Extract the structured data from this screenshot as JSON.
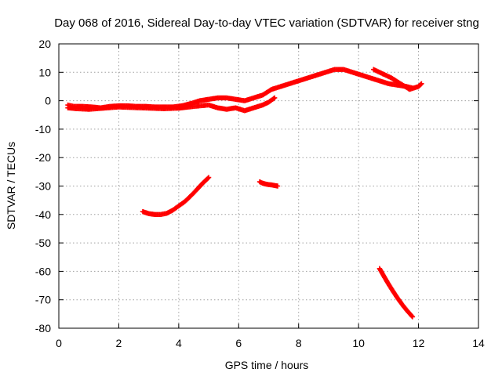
{
  "chart_data": {
    "type": "scatter",
    "title": "Day 068 of 2016, Sidereal Day-to-day VTEC variation (SDTVAR) for receiver stng",
    "xlabel": "GPS time / hours",
    "ylabel": "SDTVAR / TECUs",
    "xlim": [
      0,
      14
    ],
    "ylim": [
      -80,
      20
    ],
    "xticks": [
      0,
      2,
      4,
      6,
      8,
      10,
      12,
      14
    ],
    "yticks": [
      20,
      10,
      0,
      -10,
      -20,
      -30,
      -40,
      -50,
      -60,
      -70,
      -80
    ],
    "grid": true,
    "marker": "cross",
    "series": [
      {
        "name": "main-band",
        "color": "#ff0000",
        "x": [
          0.3,
          0.5,
          0.8,
          1.1,
          1.4,
          1.7,
          2.0,
          2.3,
          2.6,
          2.9,
          3.2,
          3.5,
          3.8,
          4.1,
          4.4,
          4.7,
          5.0,
          5.3,
          5.6,
          5.9,
          6.2,
          6.5,
          6.8,
          7.1,
          7.4,
          7.7,
          8.0,
          8.3,
          8.6,
          8.9,
          9.2,
          9.5,
          9.8,
          10.1,
          10.4,
          10.7,
          11.0,
          11.3,
          11.6,
          11.8
        ],
        "y": [
          -1.5,
          -2,
          -2,
          -2.2,
          -2.5,
          -2,
          -1.8,
          -1.8,
          -2,
          -2,
          -2.2,
          -2.2,
          -2.2,
          -1.8,
          -1,
          0,
          0.5,
          1,
          1,
          0.5,
          0,
          1,
          2,
          4,
          5,
          6,
          7,
          8,
          9,
          10,
          11,
          11,
          10,
          9,
          8,
          7,
          6,
          5.5,
          5,
          4.5
        ]
      },
      {
        "name": "lower-band",
        "color": "#ff0000",
        "x": [
          0.3,
          0.6,
          1.0,
          1.5,
          2.0,
          2.5,
          3.0,
          3.5,
          4.0,
          4.5,
          5.0,
          5.3,
          5.6,
          5.9,
          6.2,
          6.5,
          6.8,
          7.0,
          7.2
        ],
        "y": [
          -2.5,
          -2.8,
          -3,
          -2.6,
          -2.2,
          -2.4,
          -2.6,
          -2.8,
          -2.6,
          -2,
          -1.5,
          -2.5,
          -3,
          -2.5,
          -3.5,
          -2.5,
          -1.5,
          -0.5,
          1
        ]
      },
      {
        "name": "late-arc",
        "color": "#ff0000",
        "x": [
          10.5,
          10.8,
          11.1,
          11.4,
          11.7,
          12.0,
          12.1
        ],
        "y": [
          11,
          9.5,
          8,
          6,
          4,
          5,
          6
        ]
      },
      {
        "name": "negative-arc-1",
        "color": "#ff0000",
        "x": [
          2.8,
          3.0,
          3.2,
          3.4,
          3.6,
          3.8,
          4.0,
          4.2,
          4.4,
          4.6,
          4.8,
          5.0
        ],
        "y": [
          -39,
          -39.7,
          -40,
          -40,
          -39.6,
          -38.5,
          -37,
          -35.5,
          -33.5,
          -31.3,
          -29,
          -27
        ]
      },
      {
        "name": "negative-arc-2",
        "color": "#ff0000",
        "x": [
          6.7,
          6.8,
          6.9,
          7.0,
          7.1,
          7.2,
          7.3
        ],
        "y": [
          -28.5,
          -29,
          -29.3,
          -29.5,
          -29.6,
          -29.8,
          -30
        ]
      },
      {
        "name": "negative-arc-3",
        "color": "#ff0000",
        "x": [
          10.7,
          10.85,
          11.0,
          11.15,
          11.3,
          11.45,
          11.6,
          11.75,
          11.8
        ],
        "y": [
          -59,
          -61.8,
          -64.5,
          -67,
          -69.4,
          -71.6,
          -73.6,
          -75.4,
          -76
        ]
      }
    ]
  }
}
